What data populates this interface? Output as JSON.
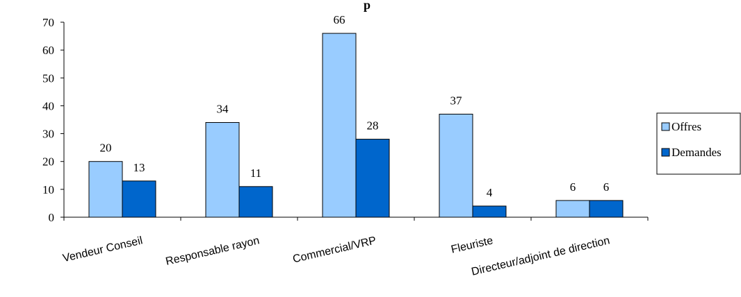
{
  "chart_data": {
    "type": "bar",
    "title": "p",
    "categories": [
      "Vendeur Conseil",
      "Responsable rayon",
      "Commercial/VRP",
      "Fleuriste",
      "Directeur/adjoint de direction"
    ],
    "series": [
      {
        "name": "Offres",
        "values": [
          20,
          34,
          66,
          37,
          6
        ],
        "color": "#99ccff"
      },
      {
        "name": "Demandes",
        "values": [
          13,
          11,
          28,
          4,
          6
        ],
        "color": "#0066cc"
      }
    ],
    "ylim": [
      0,
      70
    ],
    "yticks": [
      0,
      10,
      20,
      30,
      40,
      50,
      60,
      70
    ],
    "grid": false,
    "legend_position": "right"
  }
}
